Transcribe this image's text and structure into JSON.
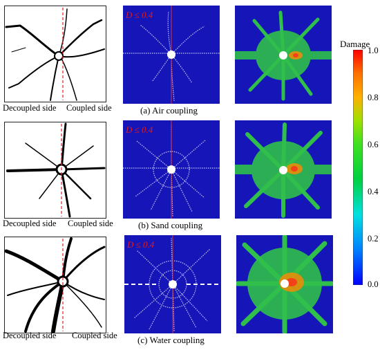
{
  "rows": [
    {
      "decoupled_label": "Decoupled side",
      "coupled_label": "Coupled side",
      "threshold_label": "D ≤ 0.4",
      "caption": "(a) Air coupling"
    },
    {
      "decoupled_label": "Decoupled side",
      "coupled_label": "Coupled side",
      "threshold_label": "D ≤ 0.4",
      "caption": "(b) Sand coupling"
    },
    {
      "decoupled_label": "Decoupled side",
      "coupled_label": "Coupled side",
      "threshold_label": "D ≤ 0.4",
      "caption": "(c) Water coupling"
    }
  ],
  "colorbar": {
    "title": "Damage",
    "ticks": [
      "1.0",
      "0.8",
      "0.6",
      "0.4",
      "0.2",
      "0.0"
    ],
    "tick_values": [
      1.0,
      0.8,
      0.6,
      0.4,
      0.2,
      0.0
    ],
    "colors_bottom_to_top": [
      "#0000ff",
      "#00a0ff",
      "#00e0e0",
      "#00d040",
      "#40e020",
      "#a0e000",
      "#ffb000",
      "#ff7000",
      "#ff0000"
    ]
  },
  "colors": {
    "sim_background": "#1616b8",
    "crack": "#000000",
    "centerline": "#e02020",
    "damage_green": "#2fbf4a"
  }
}
